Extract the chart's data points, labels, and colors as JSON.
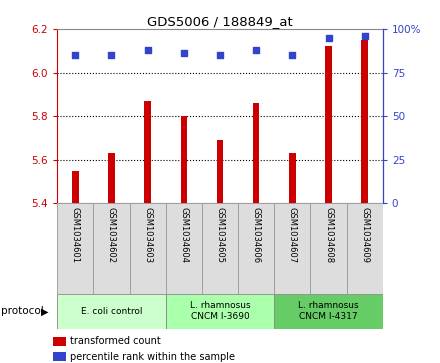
{
  "title": "GDS5006 / 188849_at",
  "samples": [
    "GSM1034601",
    "GSM1034602",
    "GSM1034603",
    "GSM1034604",
    "GSM1034605",
    "GSM1034606",
    "GSM1034607",
    "GSM1034608",
    "GSM1034609"
  ],
  "red_values": [
    5.55,
    5.63,
    5.87,
    5.8,
    5.69,
    5.86,
    5.63,
    6.12,
    6.15
  ],
  "blue_values": [
    85,
    85,
    88,
    86,
    85,
    88,
    85,
    95,
    96
  ],
  "ylim_left": [
    5.4,
    6.2
  ],
  "ylim_right": [
    0,
    100
  ],
  "yticks_left": [
    5.4,
    5.6,
    5.8,
    6.0,
    6.2
  ],
  "yticks_right": [
    0,
    25,
    50,
    75,
    100
  ],
  "grid_values": [
    5.6,
    5.8,
    6.0
  ],
  "red_color": "#cc0000",
  "blue_color": "#3344cc",
  "label_red": "transformed count",
  "label_blue": "percentile rank within the sample",
  "bar_width": 0.18,
  "left_tick_color": "#cc0000",
  "right_tick_color": "#3344cc",
  "sample_bg": "#dddddd",
  "proto_colors": [
    "#ccffcc",
    "#aaffaa",
    "#66cc66"
  ],
  "proto_labels": [
    "E. coli control",
    "L. rhamnosus\nCNCM I-3690",
    "L. rhamnosus\nCNCM I-4317"
  ],
  "proto_ranges": [
    [
      0,
      3
    ],
    [
      3,
      6
    ],
    [
      6,
      9
    ]
  ]
}
